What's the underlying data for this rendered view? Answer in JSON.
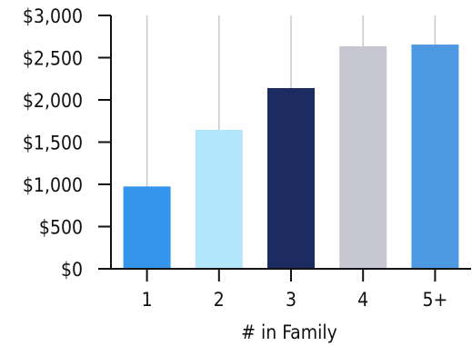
{
  "chart_data": {
    "type": "bar",
    "categories": [
      "1",
      "2",
      "3",
      "4",
      "5+"
    ],
    "values": [
      975,
      1645,
      2140,
      2635,
      2655
    ],
    "colors": [
      "#3595ec",
      "#b3e6fa",
      "#1d2b63",
      "#c6c7d1",
      "#4d99e1"
    ],
    "title": "",
    "xlabel": "# in Family",
    "ylabel": "",
    "ylim": [
      0,
      3000
    ],
    "yticks": [
      0,
      500,
      1000,
      1500,
      2000,
      2500,
      3000
    ],
    "ytick_labels": [
      "$0",
      "$500",
      "$1,000",
      "$1,500",
      "$2,000",
      "$2,500",
      "$3,000"
    ],
    "grid": {
      "x": true,
      "y": false
    },
    "legend": "none"
  }
}
